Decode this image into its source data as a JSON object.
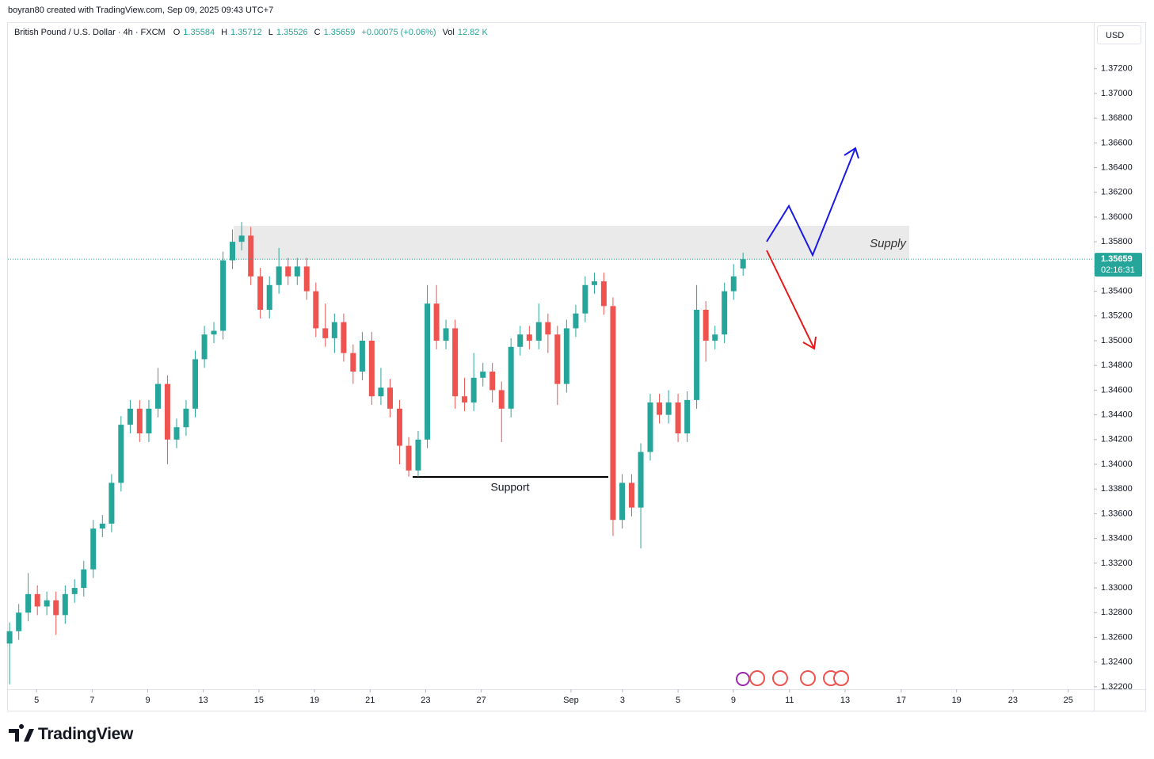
{
  "header": {
    "credit": "boyran80 created with TradingView.com, Sep 09, 2025 09:43 UTC+7"
  },
  "brand": "TradingView",
  "chart_data": {
    "type": "candlestick",
    "symbol": "British Pound / U.S. Dollar · 4h · FXCM",
    "ohlc_labels": [
      "O",
      "H",
      "L",
      "C"
    ],
    "change": "+0.00075 (+0.06%)",
    "volume_label": "Vol",
    "volume": "12.82 K",
    "currency": "USD",
    "countdown": "02:16:31",
    "annotations": {
      "supply": "Supply",
      "support": "Support"
    },
    "up_color": "#26a69a",
    "down_color": "#ef5350",
    "grid": false,
    "x": [
      -0.97,
      -0.64,
      -0.3,
      0.03,
      0.37,
      0.7,
      1.03,
      1.37,
      1.7,
      2.04,
      2.37,
      2.7,
      3.04,
      3.37,
      3.71,
      4.04,
      4.37,
      4.71,
      5.04,
      5.38,
      5.71,
      6.04,
      6.38,
      6.71,
      7.05,
      7.38,
      7.71,
      8.05,
      8.38,
      8.72,
      9.05,
      9.38,
      9.72,
      10.05,
      10.39,
      10.72,
      11.05,
      11.39,
      11.72,
      12.06,
      12.39,
      12.72,
      13.06,
      13.39,
      13.73,
      14.06,
      14.39,
      14.73,
      15.06,
      15.4,
      15.73,
      16.06,
      16.4,
      16.73,
      17.07,
      17.4,
      17.73,
      18.07,
      18.4,
      18.74,
      19.07,
      19.4,
      19.74,
      20.07,
      20.41,
      20.74,
      21.07,
      21.41,
      21.74,
      22.08,
      22.41,
      22.74,
      23.08,
      23.41,
      23.75,
      24.08,
      24.41,
      24.75,
      25.08,
      25.42
    ],
    "open": [
      1.3255,
      1.3265,
      1.328,
      1.3295,
      1.3285,
      1.329,
      1.3278,
      1.3295,
      1.33,
      1.3315,
      1.3348,
      1.3352,
      1.3385,
      1.3432,
      1.3445,
      1.3425,
      1.3445,
      1.3465,
      1.342,
      1.343,
      1.3445,
      1.3485,
      1.3505,
      1.3508,
      1.3565,
      1.358,
      1.3585,
      1.3552,
      1.3525,
      1.3545,
      1.356,
      1.3552,
      1.356,
      1.354,
      1.351,
      1.3502,
      1.3515,
      1.349,
      1.3475,
      1.35,
      1.3455,
      1.3462,
      1.3445,
      1.3415,
      1.3395,
      1.342,
      1.353,
      1.35,
      1.351,
      1.3455,
      1.345,
      1.347,
      1.3475,
      1.346,
      1.3445,
      1.3495,
      1.3505,
      1.35,
      1.3515,
      1.3505,
      1.3465,
      1.351,
      1.3522,
      1.3545,
      1.3548,
      1.3528,
      1.3355,
      1.3385,
      1.3365,
      1.341,
      1.345,
      1.344,
      1.345,
      1.3425,
      1.3452,
      1.3525,
      1.35,
      1.3505,
      1.354,
      1.35584
    ],
    "high": [
      1.3272,
      1.3287,
      1.3312,
      1.3302,
      1.3297,
      1.3297,
      1.3302,
      1.3307,
      1.3322,
      1.3355,
      1.3359,
      1.3392,
      1.3439,
      1.3452,
      1.3452,
      1.3452,
      1.3478,
      1.3472,
      1.3437,
      1.3452,
      1.3492,
      1.3512,
      1.3515,
      1.3572,
      1.359,
      1.3596,
      1.3592,
      1.3559,
      1.3552,
      1.3575,
      1.3567,
      1.3567,
      1.3567,
      1.3547,
      1.353,
      1.3522,
      1.3522,
      1.3497,
      1.3507,
      1.3507,
      1.3478,
      1.3469,
      1.3452,
      1.3422,
      1.3427,
      1.3545,
      1.3545,
      1.3517,
      1.3517,
      1.347,
      1.349,
      1.3482,
      1.3482,
      1.3467,
      1.3502,
      1.3512,
      1.3512,
      1.353,
      1.3522,
      1.3512,
      1.3517,
      1.3529,
      1.3552,
      1.3555,
      1.3555,
      1.3535,
      1.3392,
      1.3392,
      1.3417,
      1.3457,
      1.3457,
      1.346,
      1.3457,
      1.3459,
      1.3545,
      1.3532,
      1.3512,
      1.3547,
      1.3562,
      1.35712
    ],
    "low": [
      1.3222,
      1.3258,
      1.3273,
      1.3278,
      1.3278,
      1.3262,
      1.3271,
      1.3288,
      1.3293,
      1.3308,
      1.3341,
      1.3345,
      1.3378,
      1.3425,
      1.3418,
      1.3418,
      1.3438,
      1.34,
      1.3413,
      1.3423,
      1.3438,
      1.3478,
      1.3498,
      1.3501,
      1.3558,
      1.3573,
      1.3545,
      1.3518,
      1.3518,
      1.3538,
      1.3545,
      1.3545,
      1.3533,
      1.3503,
      1.3495,
      1.349,
      1.3483,
      1.3465,
      1.3468,
      1.3448,
      1.3448,
      1.3438,
      1.34,
      1.339,
      1.339,
      1.3413,
      1.3493,
      1.3493,
      1.3445,
      1.3443,
      1.3443,
      1.3463,
      1.345,
      1.3418,
      1.3438,
      1.3488,
      1.3493,
      1.3493,
      1.349,
      1.3448,
      1.3458,
      1.3503,
      1.3515,
      1.3538,
      1.3521,
      1.3342,
      1.3348,
      1.3358,
      1.3332,
      1.3403,
      1.3433,
      1.3433,
      1.3418,
      1.3418,
      1.3445,
      1.3483,
      1.3493,
      1.3498,
      1.3533,
      1.35526
    ],
    "close": [
      1.3265,
      1.328,
      1.3295,
      1.3285,
      1.329,
      1.3278,
      1.3295,
      1.33,
      1.3315,
      1.3348,
      1.3352,
      1.3385,
      1.3432,
      1.3445,
      1.3425,
      1.3445,
      1.3465,
      1.342,
      1.343,
      1.3445,
      1.3485,
      1.3505,
      1.3508,
      1.3565,
      1.358,
      1.3585,
      1.3552,
      1.3525,
      1.3545,
      1.356,
      1.3552,
      1.356,
      1.354,
      1.351,
      1.3502,
      1.3515,
      1.349,
      1.3475,
      1.35,
      1.3455,
      1.3462,
      1.3445,
      1.3415,
      1.3395,
      1.342,
      1.353,
      1.35,
      1.351,
      1.3455,
      1.345,
      1.347,
      1.3475,
      1.346,
      1.3445,
      1.3495,
      1.3505,
      1.35,
      1.3515,
      1.3505,
      1.3465,
      1.351,
      1.3522,
      1.3545,
      1.3548,
      1.3528,
      1.3355,
      1.3385,
      1.3365,
      1.341,
      1.345,
      1.344,
      1.345,
      1.3425,
      1.3452,
      1.3525,
      1.35,
      1.3505,
      1.354,
      1.3552,
      1.35659
    ],
    "xlim": [
      -1.03,
      38.01
    ],
    "xticks": [
      {
        "value": 0,
        "label": "5"
      },
      {
        "value": 2,
        "label": "7"
      },
      {
        "value": 4,
        "label": "9"
      },
      {
        "value": 6,
        "label": "13"
      },
      {
        "value": 8,
        "label": "15"
      },
      {
        "value": 10,
        "label": "19"
      },
      {
        "value": 12,
        "label": "21"
      },
      {
        "value": 14,
        "label": "23"
      },
      {
        "value": 16,
        "label": "27"
      },
      {
        "value": 19.23,
        "label": "Sep"
      },
      {
        "value": 21.08,
        "label": "3"
      },
      {
        "value": 23.08,
        "label": "5"
      },
      {
        "value": 25.07,
        "label": "9"
      },
      {
        "value": 27.09,
        "label": "11"
      },
      {
        "value": 29.09,
        "label": "13"
      },
      {
        "value": 31.11,
        "label": "17"
      },
      {
        "value": 33.1,
        "label": "19"
      },
      {
        "value": 35.13,
        "label": "23"
      },
      {
        "value": 37.12,
        "label": "25"
      }
    ],
    "ylim": [
      1.3218,
      1.3757
    ],
    "yticks": [
      {
        "value": 1.322,
        "label": "1.32200"
      },
      {
        "value": 1.324,
        "label": "1.32400"
      },
      {
        "value": 1.326,
        "label": "1.32600"
      },
      {
        "value": 1.328,
        "label": "1.32800"
      },
      {
        "value": 1.33,
        "label": "1.33000"
      },
      {
        "value": 1.332,
        "label": "1.33200"
      },
      {
        "value": 1.334,
        "label": "1.33400"
      },
      {
        "value": 1.336,
        "label": "1.33600"
      },
      {
        "value": 1.338,
        "label": "1.33800"
      },
      {
        "value": 1.34,
        "label": "1.34000"
      },
      {
        "value": 1.342,
        "label": "1.34200"
      },
      {
        "value": 1.344,
        "label": "1.34400"
      },
      {
        "value": 1.346,
        "label": "1.34600"
      },
      {
        "value": 1.348,
        "label": "1.34800"
      },
      {
        "value": 1.35,
        "label": "1.35000"
      },
      {
        "value": 1.352,
        "label": "1.35200"
      },
      {
        "value": 1.354,
        "label": "1.35400"
      },
      {
        "value": 1.356,
        "label": "1.35600"
      },
      {
        "value": 1.358,
        "label": "1.35800"
      },
      {
        "value": 1.36,
        "label": "1.36000"
      },
      {
        "value": 1.362,
        "label": "1.36200"
      },
      {
        "value": 1.364,
        "label": "1.36400"
      },
      {
        "value": 1.366,
        "label": "1.36600"
      },
      {
        "value": 1.368,
        "label": "1.36800"
      },
      {
        "value": 1.37,
        "label": "1.37000"
      },
      {
        "value": 1.372,
        "label": "1.37200"
      }
    ]
  }
}
